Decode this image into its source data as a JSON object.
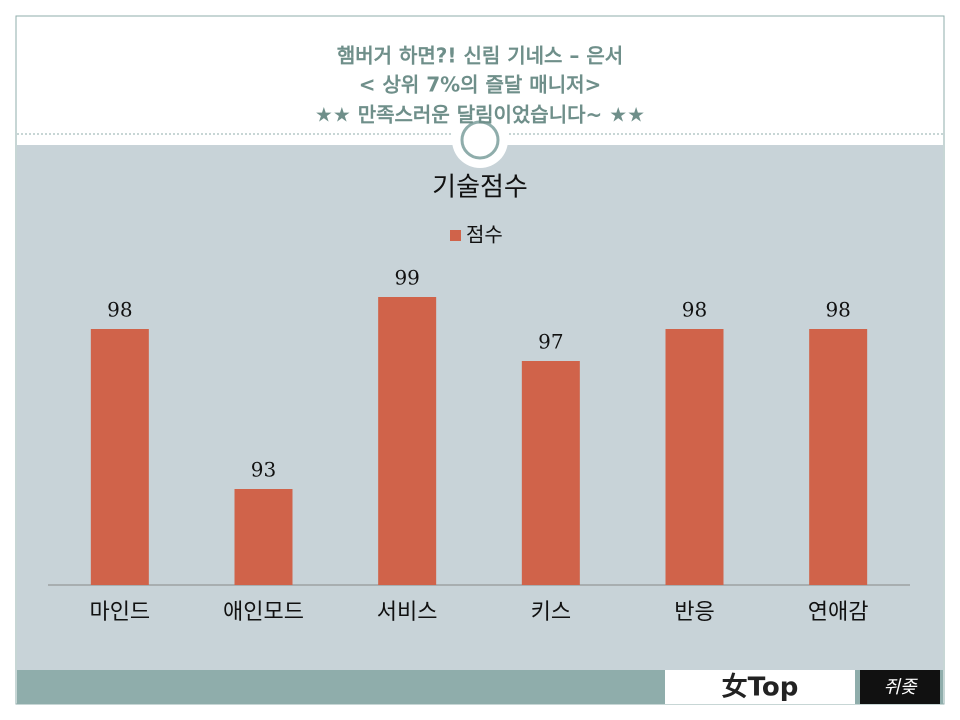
{
  "header": {
    "lines": [
      "햄버거 하면?! 신림 기네스 – 은서",
      "< 상위 7%의 즐달 매니저>",
      "★★ 만족스러운 달림이었습니다~ ★★"
    ]
  },
  "chart_data": {
    "type": "bar",
    "title": "기술점수",
    "categories": [
      "마인드",
      "애인모드",
      "서비스",
      "키스",
      "반응",
      "연애감"
    ],
    "series": [
      {
        "name": "점수",
        "color": "#d0634a",
        "values": [
          98,
          93,
          99,
          97,
          98,
          98
        ]
      }
    ],
    "ylim": [
      90,
      100
    ],
    "legend": "top"
  },
  "footer": {
    "logos": [
      "女Top",
      "쥐좆"
    ]
  }
}
